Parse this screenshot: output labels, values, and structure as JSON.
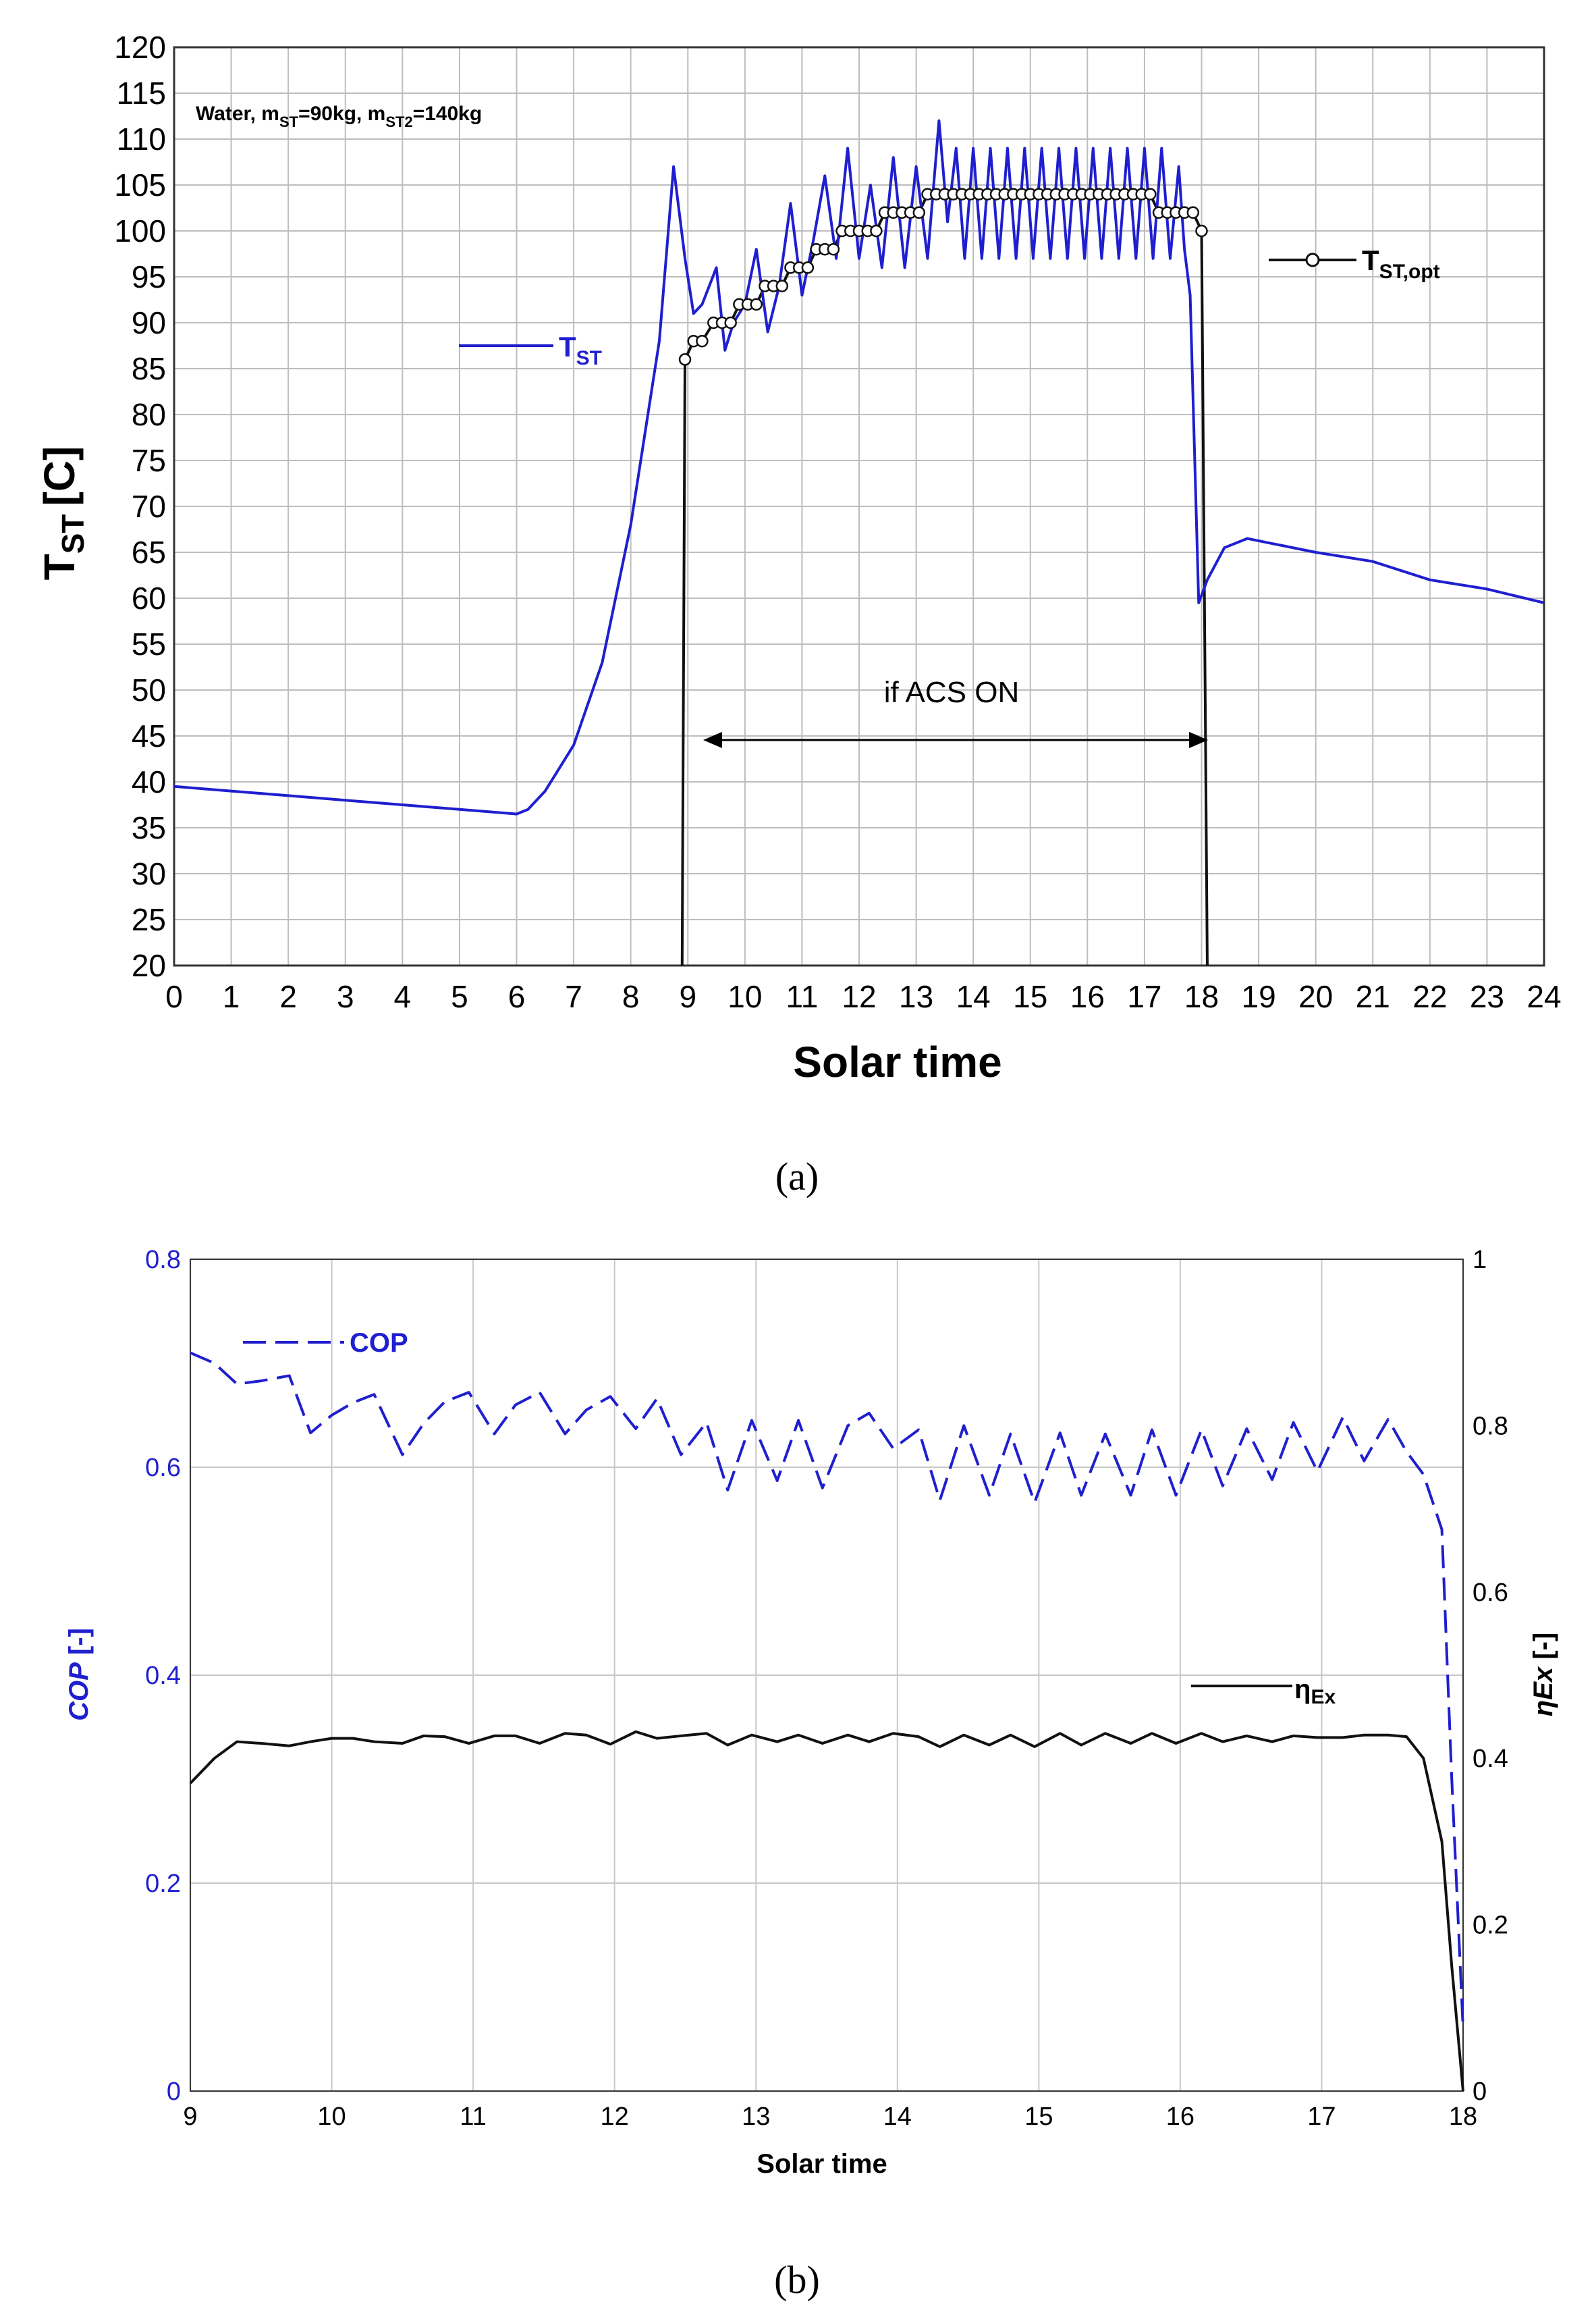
{
  "chart_data": [
    {
      "type": "line",
      "panel_label": "(a)",
      "annotation": "Water, m",
      "annotation_parts": [
        "Water, m",
        "ST",
        "=90kg, m",
        "ST2",
        "=140kg"
      ],
      "xlabel": "Solar time",
      "ylabel_main": "T",
      "ylabel_sub": "ST",
      "ylabel_unit": "[C]",
      "span_label": "if ACS ON",
      "xlim": [
        0,
        24
      ],
      "ylim": [
        20,
        120
      ],
      "xticks": [
        "0",
        "1",
        "2",
        "3",
        "4",
        "5",
        "6",
        "7",
        "8",
        "9",
        "10",
        "11",
        "12",
        "13",
        "14",
        "15",
        "16",
        "17",
        "18",
        "19",
        "20",
        "21",
        "22",
        "23",
        "24"
      ],
      "yticks": [
        "20",
        "25",
        "30",
        "35",
        "40",
        "45",
        "50",
        "55",
        "60",
        "65",
        "70",
        "75",
        "80",
        "85",
        "90",
        "95",
        "100",
        "105",
        "110",
        "115",
        "120"
      ],
      "grid": true,
      "series": [
        {
          "name": "T",
          "name_sub": "ST",
          "color": "#1f1fd0",
          "x": [
            0,
            1,
            2,
            3,
            4,
            5,
            6,
            6.2,
            6.5,
            7,
            7.5,
            8,
            8.5,
            8.75,
            8.95,
            9.1,
            9.25,
            9.5,
            9.65,
            9.8,
            10,
            10.2,
            10.4,
            10.6,
            10.8,
            11.0,
            11.2,
            11.4,
            11.6,
            11.8,
            12.0,
            12.2,
            12.4,
            12.6,
            12.8,
            13.0,
            13.2,
            13.4,
            13.55,
            13.7,
            13.85,
            14.0,
            14.15,
            14.3,
            14.45,
            14.6,
            14.75,
            14.9,
            15.05,
            15.2,
            15.35,
            15.5,
            15.65,
            15.8,
            15.95,
            16.1,
            16.25,
            16.4,
            16.55,
            16.7,
            16.85,
            17.0,
            17.15,
            17.3,
            17.45,
            17.6,
            17.7,
            17.8,
            17.95,
            18.1,
            18.4,
            18.8,
            19.2,
            20,
            21,
            22,
            23,
            24
          ],
          "y": [
            39.5,
            39,
            38.5,
            38,
            37.5,
            37,
            36.5,
            37,
            39,
            44,
            53,
            68,
            88,
            107,
            97,
            91,
            92,
            96,
            87,
            90,
            92,
            98,
            89,
            94,
            103,
            93,
            99,
            106,
            97,
            109,
            97,
            105,
            96,
            108,
            96,
            107,
            97,
            112,
            101,
            109,
            97,
            109,
            97,
            109,
            97,
            109,
            97,
            109,
            97,
            109,
            97,
            109,
            97,
            109,
            97,
            109,
            97,
            109,
            97,
            109,
            97,
            109,
            97,
            109,
            97,
            107,
            98,
            93,
            59.5,
            62,
            65.5,
            66.5,
            66,
            65,
            64,
            62,
            61,
            59.5
          ]
        },
        {
          "name": "T",
          "name_sub": "ST,opt",
          "color": "#111111",
          "x": [
            8.95,
            9.1,
            9.25,
            9.45,
            9.6,
            9.75,
            9.9,
            10.05,
            10.2,
            10.35,
            10.5,
            10.65,
            10.8,
            10.95,
            11.1,
            11.25,
            11.4,
            11.55,
            11.7,
            11.85,
            12.0,
            12.15,
            12.3,
            12.45,
            12.6,
            12.75,
            12.9,
            13.05,
            13.2,
            13.35,
            13.5,
            13.65,
            13.8,
            13.95,
            14.1,
            14.25,
            14.4,
            14.55,
            14.7,
            14.85,
            15.0,
            15.15,
            15.3,
            15.45,
            15.6,
            15.75,
            15.9,
            16.05,
            16.2,
            16.35,
            16.5,
            16.65,
            16.8,
            16.95,
            17.1,
            17.25,
            17.4,
            17.55,
            17.7,
            17.85,
            18.0
          ],
          "y": [
            86,
            88,
            88,
            90,
            90,
            90,
            92,
            92,
            92,
            94,
            94,
            94,
            96,
            96,
            96,
            98,
            98,
            98,
            100,
            100,
            100,
            100,
            100,
            102,
            102,
            102,
            102,
            102,
            104,
            104,
            104,
            104,
            104,
            104,
            104,
            104,
            104,
            104,
            104,
            104,
            104,
            104,
            104,
            104,
            104,
            104,
            104,
            104,
            104,
            104,
            104,
            104,
            104,
            104,
            104,
            102,
            102,
            102,
            102,
            102,
            100
          ],
          "drop_left": [
            8.9,
            20
          ],
          "drop_right": [
            18.1,
            20
          ],
          "markers": true
        }
      ]
    },
    {
      "type": "line",
      "panel_label": "(b)",
      "xlabel": "Solar time",
      "ylabel_left": "COP [-]",
      "ylabel_left_italic": "COP",
      "ylabel_left_unit": " [-]",
      "ylabel_right_italic": "ηEx",
      "ylabel_right_unit": " [-]",
      "xlim": [
        9,
        18
      ],
      "ylim_left": [
        0,
        0.8
      ],
      "ylim_right": [
        0,
        1
      ],
      "xticks": [
        "9",
        "10",
        "11",
        "12",
        "13",
        "14",
        "15",
        "16",
        "17",
        "18"
      ],
      "yticks_left": [
        "0",
        "0.2",
        "0.4",
        "0.6",
        "0.8"
      ],
      "yticks_right": [
        "0",
        "0.2",
        "0.4",
        "0.6",
        "0.8",
        "1"
      ],
      "grid": true,
      "series": [
        {
          "name": "COP",
          "color": "#1f1fd0",
          "axis": "left",
          "style": "dashed",
          "x": [
            9,
            9.17,
            9.33,
            9.5,
            9.7,
            9.85,
            10,
            10.15,
            10.3,
            10.5,
            10.65,
            10.8,
            10.97,
            11.15,
            11.3,
            11.47,
            11.65,
            11.8,
            11.97,
            12.15,
            12.3,
            12.47,
            12.65,
            12.8,
            12.97,
            13.15,
            13.3,
            13.47,
            13.65,
            13.8,
            13.97,
            14.15,
            14.3,
            14.47,
            14.65,
            14.8,
            14.97,
            15.15,
            15.3,
            15.47,
            15.65,
            15.8,
            15.97,
            16.15,
            16.3,
            16.47,
            16.65,
            16.8,
            16.97,
            17.15,
            17.3,
            17.47,
            17.6,
            17.72,
            17.85,
            17.92,
            18.0
          ],
          "y": [
            0.71,
            0.7,
            0.68,
            0.683,
            0.688,
            0.633,
            0.65,
            0.662,
            0.67,
            0.612,
            0.642,
            0.663,
            0.672,
            0.632,
            0.66,
            0.672,
            0.632,
            0.655,
            0.668,
            0.637,
            0.666,
            0.612,
            0.643,
            0.578,
            0.645,
            0.587,
            0.645,
            0.58,
            0.64,
            0.652,
            0.618,
            0.636,
            0.568,
            0.64,
            0.573,
            0.632,
            0.566,
            0.633,
            0.573,
            0.632,
            0.573,
            0.636,
            0.573,
            0.636,
            0.582,
            0.637,
            0.588,
            0.643,
            0.596,
            0.648,
            0.606,
            0.646,
            0.615,
            0.593,
            0.54,
            0.3,
            0.06
          ]
        },
        {
          "name": "ηEx",
          "name_main": "η",
          "name_sub": "Ex",
          "color": "#111111",
          "axis": "right",
          "style": "solid",
          "x": [
            9,
            9.17,
            9.33,
            9.5,
            9.7,
            9.85,
            10,
            10.15,
            10.3,
            10.5,
            10.65,
            10.8,
            10.97,
            11.15,
            11.3,
            11.47,
            11.65,
            11.8,
            11.97,
            12.15,
            12.3,
            12.47,
            12.65,
            12.8,
            12.97,
            13.15,
            13.3,
            13.47,
            13.65,
            13.8,
            13.97,
            14.15,
            14.3,
            14.47,
            14.65,
            14.8,
            14.97,
            15.15,
            15.3,
            15.47,
            15.65,
            15.8,
            15.97,
            16.15,
            16.3,
            16.47,
            16.65,
            16.8,
            16.97,
            17.15,
            17.3,
            17.47,
            17.6,
            17.72,
            17.85,
            17.92,
            18.0
          ],
          "y": [
            0.37,
            0.4,
            0.42,
            0.418,
            0.415,
            0.42,
            0.424,
            0.424,
            0.42,
            0.418,
            0.427,
            0.426,
            0.418,
            0.427,
            0.427,
            0.418,
            0.43,
            0.428,
            0.417,
            0.432,
            0.424,
            0.427,
            0.43,
            0.416,
            0.428,
            0.42,
            0.428,
            0.418,
            0.428,
            0.42,
            0.43,
            0.426,
            0.414,
            0.428,
            0.416,
            0.428,
            0.414,
            0.43,
            0.416,
            0.43,
            0.418,
            0.43,
            0.418,
            0.43,
            0.42,
            0.427,
            0.42,
            0.427,
            0.425,
            0.425,
            0.428,
            0.428,
            0.426,
            0.4,
            0.3,
            0.15,
            0.0
          ]
        }
      ]
    }
  ]
}
